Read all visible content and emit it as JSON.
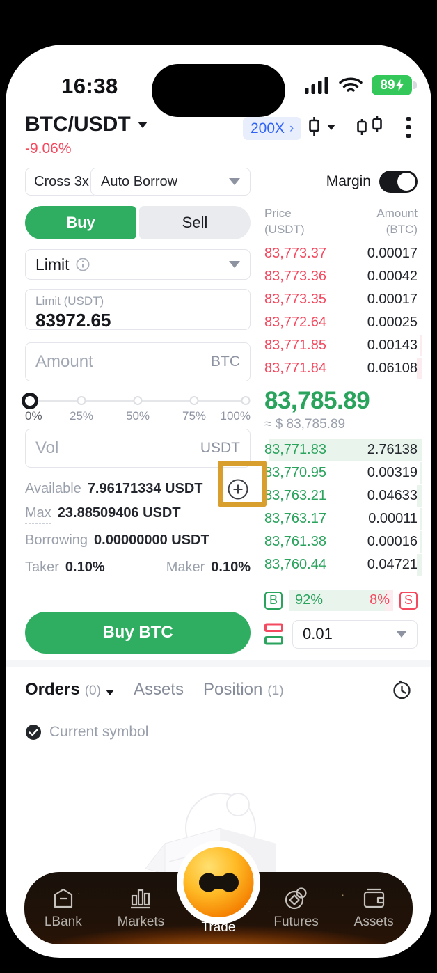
{
  "colors": {
    "up_green": "#2aa35d",
    "down_red": "#f4495f",
    "accent_blue": "#2f62f6",
    "buy_button_green": "#2fae62",
    "annotation_orange": "#d89e2e",
    "battery_green": "#34c759"
  },
  "status_bar": {
    "time": "16:38",
    "battery_level": "89"
  },
  "header": {
    "pair": "BTC/USDT",
    "change": "-9.06%",
    "leverage": "200X",
    "leverage_chevron": "›"
  },
  "margin_row": {
    "cross": "Cross 3x",
    "borrow_mode": "Auto Borrow",
    "margin_label": "Margin"
  },
  "side_tabs": {
    "buy": "Buy",
    "sell": "Sell"
  },
  "form": {
    "order_type": "Limit",
    "price_label": "Limit (USDT)",
    "price_value": "83972.65",
    "amount_placeholder": "Amount",
    "amount_unit": "BTC",
    "slider_labels": [
      "0%",
      "25%",
      "50%",
      "75%",
      "100%"
    ],
    "vol_placeholder": "Vol",
    "vol_unit": "USDT",
    "available_label": "Available",
    "available_value": "7.96171334 USDT",
    "max_label": "Max",
    "max_value": "23.88509406 USDT",
    "borrowing_label": "Borrowing",
    "borrowing_value": "0.00000000 USDT",
    "taker_label": "Taker",
    "taker_value": "0.10%",
    "maker_label": "Maker",
    "maker_value": "0.10%",
    "submit_label": "Buy BTC"
  },
  "orderbook": {
    "price_header": "Price",
    "price_header_unit": "(USDT)",
    "amount_header": "Amount",
    "amount_header_unit": "(BTC)",
    "asks": [
      {
        "price": "83,773.37",
        "amount": "0.00017",
        "depth": 0
      },
      {
        "price": "83,773.36",
        "amount": "0.00042",
        "depth": 0
      },
      {
        "price": "83,773.35",
        "amount": "0.00017",
        "depth": 0
      },
      {
        "price": "83,772.64",
        "amount": "0.00025",
        "depth": 0
      },
      {
        "price": "83,771.85",
        "amount": "0.00143",
        "depth": 1
      },
      {
        "price": "83,771.84",
        "amount": "0.06108",
        "depth": 3
      }
    ],
    "last_price": "83,785.89",
    "last_price_fiat": "≈ $ 83,785.89",
    "bids": [
      {
        "price": "83,771.83",
        "amount": "2.76138",
        "depth": 100
      },
      {
        "price": "83,770.95",
        "amount": "0.00319",
        "depth": 1
      },
      {
        "price": "83,763.21",
        "amount": "0.04633",
        "depth": 3
      },
      {
        "price": "83,763.17",
        "amount": "0.00011",
        "depth": 1
      },
      {
        "price": "83,761.38",
        "amount": "0.00016",
        "depth": 1
      },
      {
        "price": "83,760.44",
        "amount": "0.04721",
        "depth": 3
      }
    ],
    "buy_badge": "B",
    "buy_ratio": "92%",
    "buy_ratio_pct": 92,
    "sell_ratio": "8%",
    "sell_ratio_pct": 8,
    "sell_badge": "S",
    "precision": "0.01"
  },
  "bottom_tabs": {
    "orders": "Orders",
    "orders_count": "(0)",
    "assets": "Assets",
    "position": "Position",
    "position_count": "(1)"
  },
  "filters": {
    "current_symbol": "Current symbol"
  },
  "nav": {
    "active": "Trade",
    "items": [
      {
        "label": "LBank"
      },
      {
        "label": "Markets"
      },
      {
        "label": "Trade"
      },
      {
        "label": "Futures"
      },
      {
        "label": "Assets"
      }
    ]
  }
}
